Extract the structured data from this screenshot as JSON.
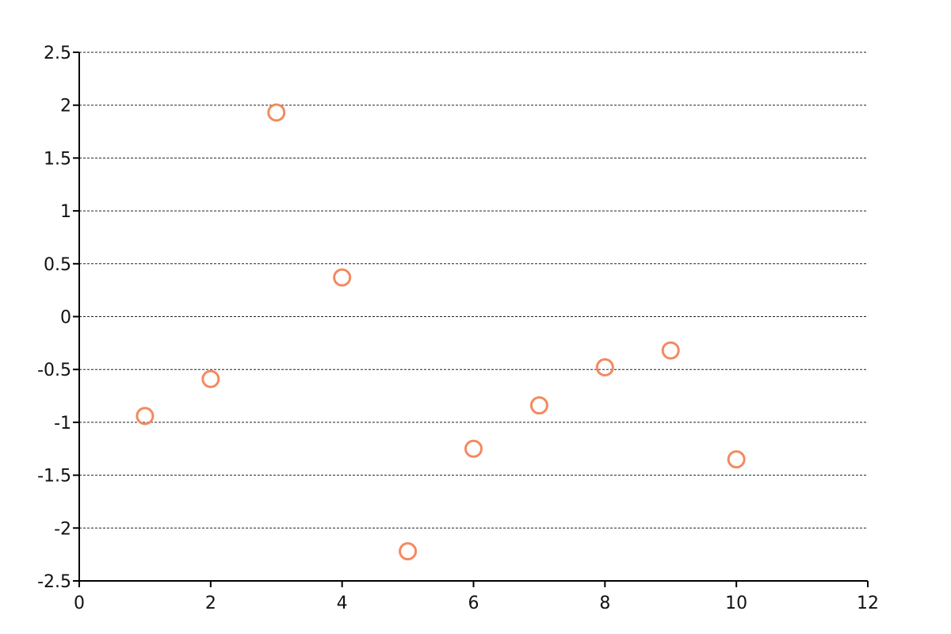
{
  "chart_data": {
    "type": "scatter",
    "title": "",
    "xlabel": "",
    "ylabel": "",
    "xlim": [
      0,
      12
    ],
    "ylim": [
      -2.5,
      2.5
    ],
    "x_ticks": [
      0,
      2,
      4,
      6,
      8,
      10,
      12
    ],
    "y_ticks": [
      2.5,
      2,
      1.5,
      1,
      0.5,
      0,
      -0.5,
      -1,
      -1.5,
      -2,
      -2.5
    ],
    "x_tick_labels": [
      "0",
      "2",
      "4",
      "6",
      "8",
      "10",
      "12"
    ],
    "y_tick_labels": [
      "2.5",
      "2",
      "1.5",
      "1",
      "0.5",
      "0",
      "-0.5",
      "-1",
      "-1.5",
      "-2",
      "-2.5"
    ],
    "grid": "horizontal-dashed",
    "legend": "none",
    "series": [
      {
        "x": [
          1,
          2,
          3,
          4,
          5,
          6,
          7,
          8,
          9,
          10
        ],
        "y": [
          -0.94,
          -0.59,
          1.93,
          0.37,
          -2.22,
          -1.25,
          -0.84,
          -0.48,
          -0.32,
          -1.35
        ],
        "marker": "hollow-circle",
        "color": "#f4895f"
      }
    ]
  }
}
